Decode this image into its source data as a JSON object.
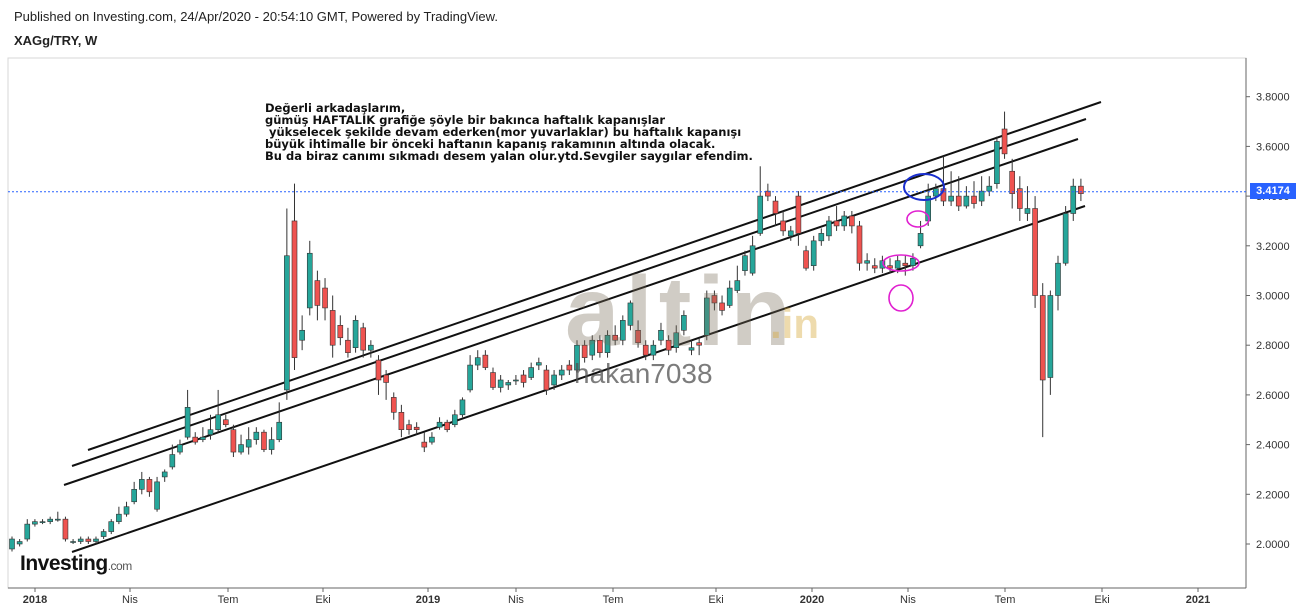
{
  "header": {
    "published": "Published on Investing.com, 24/Apr/2020 - 20:54:10 GMT, Powered by TradingView.",
    "symbol": "XAGg/TRY, W"
  },
  "annotation": [
    "Değerli arkadaşlarım,",
    "gümüş HAFTALIK grafiğe şöyle bir bakınca haftalık kapanışlar",
    " yükselecek şekilde devam ederken(mor yuvarlaklar) bu haftalık kapanışı",
    "büyük ihtimalle bir önceki haftanın kapanış rakamının altında olacak.",
    "Bu da biraz canımı sıkmadı desem yalan olur.ytd.Sevgiler saygılar efendim."
  ],
  "watermark": {
    "brand": "altin",
    "suffix": ".in",
    "user": "hakan7038"
  },
  "logo": {
    "name": "Investing",
    "suffix": ".com"
  },
  "colors": {
    "up": "#26a69a",
    "down": "#ef5350",
    "price_line": "#2962ff",
    "circle_magenta": "#e020d0",
    "circle_blue": "#1a2fcf"
  },
  "chart_data": {
    "type": "candlestick",
    "title": "XAGg/TRY, W",
    "ylim": [
      1.8,
      3.9
    ],
    "y_ticks": [
      "2.0000",
      "2.2000",
      "2.4000",
      "2.6000",
      "2.8000",
      "3.0000",
      "3.2000",
      "3.4000",
      "3.6000",
      "3.8000"
    ],
    "x_ticks": [
      "2018",
      "Nis",
      "Tem",
      "Eki",
      "2019",
      "Nis",
      "Tem",
      "Eki",
      "2020",
      "Nis",
      "Tem",
      "Eki",
      "2021"
    ],
    "last_price": "3.4174",
    "grid": false,
    "candles": [
      [
        1.98,
        2.02,
        1.97,
        2.03
      ],
      [
        2.0,
        2.01,
        1.99,
        2.02
      ],
      [
        2.02,
        2.08,
        2.01,
        2.1
      ],
      [
        2.08,
        2.09,
        2.07,
        2.1
      ],
      [
        2.09,
        2.09,
        2.08,
        2.1
      ],
      [
        2.09,
        2.1,
        2.08,
        2.11
      ],
      [
        2.1,
        2.1,
        2.09,
        2.13
      ],
      [
        2.1,
        2.02,
        2.01,
        2.11
      ],
      [
        2.01,
        2.01,
        2.0,
        2.02
      ],
      [
        2.01,
        2.02,
        2.0,
        2.03
      ],
      [
        2.02,
        2.01,
        2.0,
        2.03
      ],
      [
        2.01,
        2.02,
        2.0,
        2.03
      ],
      [
        2.03,
        2.05,
        2.02,
        2.06
      ],
      [
        2.05,
        2.09,
        2.04,
        2.1
      ],
      [
        2.09,
        2.12,
        2.08,
        2.15
      ],
      [
        2.12,
        2.15,
        2.11,
        2.17
      ],
      [
        2.17,
        2.22,
        2.16,
        2.25
      ],
      [
        2.22,
        2.26,
        2.2,
        2.29
      ],
      [
        2.26,
        2.21,
        2.19,
        2.27
      ],
      [
        2.14,
        2.25,
        2.13,
        2.27
      ],
      [
        2.27,
        2.29,
        2.25,
        2.3
      ],
      [
        2.31,
        2.36,
        2.3,
        2.4
      ],
      [
        2.37,
        2.4,
        2.36,
        2.42
      ],
      [
        2.43,
        2.55,
        2.42,
        2.62
      ],
      [
        2.43,
        2.41,
        2.4,
        2.45
      ],
      [
        2.42,
        2.43,
        2.41,
        2.47
      ],
      [
        2.44,
        2.46,
        2.42,
        2.52
      ],
      [
        2.46,
        2.52,
        2.45,
        2.62
      ],
      [
        2.5,
        2.48,
        2.47,
        2.52
      ],
      [
        2.46,
        2.37,
        2.35,
        2.48
      ],
      [
        2.37,
        2.4,
        2.36,
        2.44
      ],
      [
        2.39,
        2.42,
        2.36,
        2.47
      ],
      [
        2.42,
        2.45,
        2.4,
        2.47
      ],
      [
        2.45,
        2.38,
        2.37,
        2.46
      ],
      [
        2.38,
        2.42,
        2.36,
        2.47
      ],
      [
        2.42,
        2.49,
        2.41,
        2.57
      ],
      [
        2.62,
        3.16,
        2.58,
        3.35
      ],
      [
        3.3,
        2.75,
        2.7,
        3.45
      ],
      [
        2.82,
        2.86,
        2.78,
        2.92
      ],
      [
        2.95,
        3.17,
        2.92,
        3.22
      ],
      [
        3.06,
        2.96,
        2.9,
        3.1
      ],
      [
        3.03,
        2.95,
        2.9,
        3.07
      ],
      [
        2.94,
        2.8,
        2.75,
        3.0
      ],
      [
        2.88,
        2.83,
        2.8,
        2.92
      ],
      [
        2.82,
        2.77,
        2.75,
        2.87
      ],
      [
        2.79,
        2.9,
        2.77,
        2.92
      ],
      [
        2.87,
        2.78,
        2.75,
        2.89
      ],
      [
        2.78,
        2.8,
        2.75,
        2.82
      ],
      [
        2.74,
        2.66,
        2.6,
        2.76
      ],
      [
        2.68,
        2.65,
        2.58,
        2.7
      ],
      [
        2.59,
        2.53,
        2.5,
        2.61
      ],
      [
        2.53,
        2.46,
        2.43,
        2.56
      ],
      [
        2.48,
        2.46,
        2.44,
        2.5
      ],
      [
        2.47,
        2.46,
        2.44,
        2.49
      ],
      [
        2.41,
        2.39,
        2.37,
        2.45
      ],
      [
        2.41,
        2.43,
        2.4,
        2.45
      ],
      [
        2.47,
        2.49,
        2.46,
        2.51
      ],
      [
        2.49,
        2.46,
        2.45,
        2.5
      ],
      [
        2.48,
        2.52,
        2.47,
        2.54
      ],
      [
        2.52,
        2.58,
        2.51,
        2.59
      ],
      [
        2.62,
        2.72,
        2.61,
        2.76
      ],
      [
        2.72,
        2.75,
        2.7,
        2.78
      ],
      [
        2.76,
        2.71,
        2.7,
        2.78
      ],
      [
        2.69,
        2.63,
        2.62,
        2.71
      ],
      [
        2.63,
        2.66,
        2.61,
        2.68
      ],
      [
        2.64,
        2.65,
        2.62,
        2.66
      ],
      [
        2.66,
        2.66,
        2.64,
        2.68
      ],
      [
        2.68,
        2.65,
        2.63,
        2.7
      ],
      [
        2.67,
        2.71,
        2.66,
        2.73
      ],
      [
        2.72,
        2.73,
        2.7,
        2.75
      ],
      [
        2.7,
        2.62,
        2.6,
        2.72
      ],
      [
        2.64,
        2.68,
        2.62,
        2.7
      ],
      [
        2.68,
        2.7,
        2.66,
        2.72
      ],
      [
        2.72,
        2.7,
        2.68,
        2.74
      ],
      [
        2.7,
        2.8,
        2.69,
        2.82
      ],
      [
        2.8,
        2.75,
        2.73,
        2.82
      ],
      [
        2.76,
        2.82,
        2.74,
        2.84
      ],
      [
        2.82,
        2.77,
        2.75,
        2.84
      ],
      [
        2.77,
        2.84,
        2.75,
        2.86
      ],
      [
        2.84,
        2.82,
        2.8,
        2.88
      ],
      [
        2.82,
        2.9,
        2.8,
        2.92
      ],
      [
        2.88,
        2.97,
        2.86,
        2.98
      ],
      [
        2.86,
        2.81,
        2.79,
        2.9
      ],
      [
        2.8,
        2.76,
        2.74,
        2.82
      ],
      [
        2.76,
        2.8,
        2.74,
        2.82
      ],
      [
        2.82,
        2.86,
        2.8,
        2.89
      ],
      [
        2.82,
        2.78,
        2.76,
        2.84
      ],
      [
        2.79,
        2.85,
        2.77,
        2.88
      ],
      [
        2.86,
        2.92,
        2.84,
        2.94
      ],
      [
        2.78,
        2.79,
        2.76,
        2.82
      ],
      [
        2.81,
        2.8,
        2.76,
        2.83
      ],
      [
        2.84,
        2.99,
        2.82,
        3.02
      ],
      [
        3.0,
        2.97,
        2.94,
        3.02
      ],
      [
        2.97,
        2.94,
        2.92,
        3.0
      ],
      [
        2.96,
        3.03,
        2.95,
        3.06
      ],
      [
        3.02,
        3.06,
        3.01,
        3.12
      ],
      [
        3.1,
        3.16,
        3.08,
        3.18
      ],
      [
        3.09,
        3.2,
        3.08,
        3.24
      ],
      [
        3.25,
        3.4,
        3.24,
        3.52
      ],
      [
        3.42,
        3.4,
        3.38,
        3.45
      ],
      [
        3.38,
        3.33,
        3.28,
        3.4
      ],
      [
        3.3,
        3.26,
        3.24,
        3.34
      ],
      [
        3.24,
        3.26,
        3.22,
        3.28
      ],
      [
        3.4,
        3.25,
        3.2,
        3.42
      ],
      [
        3.18,
        3.11,
        3.1,
        3.2
      ],
      [
        3.12,
        3.22,
        3.1,
        3.24
      ],
      [
        3.22,
        3.25,
        3.2,
        3.27
      ],
      [
        3.24,
        3.3,
        3.22,
        3.32
      ],
      [
        3.3,
        3.28,
        3.26,
        3.36
      ],
      [
        3.28,
        3.32,
        3.26,
        3.34
      ],
      [
        3.32,
        3.28,
        3.25,
        3.34
      ],
      [
        3.28,
        3.13,
        3.1,
        3.3
      ],
      [
        3.13,
        3.14,
        3.1,
        3.17
      ],
      [
        3.12,
        3.11,
        3.09,
        3.15
      ],
      [
        3.11,
        3.14,
        3.09,
        3.16
      ],
      [
        3.12,
        3.11,
        3.09,
        3.15
      ],
      [
        3.11,
        3.14,
        3.09,
        3.16
      ],
      [
        3.13,
        3.12,
        3.08,
        3.16
      ],
      [
        3.12,
        3.15,
        3.1,
        3.17
      ],
      [
        3.2,
        3.25,
        3.19,
        3.3
      ],
      [
        3.3,
        3.4,
        3.28,
        3.45
      ],
      [
        3.4,
        3.43,
        3.38,
        3.45
      ],
      [
        3.43,
        3.38,
        3.36,
        3.56
      ],
      [
        3.38,
        3.4,
        3.36,
        3.5
      ],
      [
        3.4,
        3.36,
        3.34,
        3.48
      ],
      [
        3.36,
        3.4,
        3.35,
        3.44
      ],
      [
        3.4,
        3.37,
        3.35,
        3.46
      ],
      [
        3.38,
        3.42,
        3.36,
        3.48
      ],
      [
        3.42,
        3.44,
        3.4,
        3.48
      ],
      [
        3.45,
        3.62,
        3.43,
        3.64
      ],
      [
        3.67,
        3.57,
        3.55,
        3.74
      ],
      [
        3.5,
        3.41,
        3.35,
        3.55
      ],
      [
        3.43,
        3.35,
        3.3,
        3.48
      ],
      [
        3.33,
        3.35,
        3.3,
        3.44
      ],
      [
        3.35,
        3.0,
        2.95,
        3.4
      ],
      [
        3.0,
        2.66,
        2.43,
        3.05
      ],
      [
        2.67,
        3.0,
        2.6,
        3.02
      ],
      [
        3.0,
        3.13,
        2.94,
        3.16
      ],
      [
        3.13,
        3.33,
        3.12,
        3.36
      ],
      [
        3.33,
        3.44,
        3.3,
        3.47
      ],
      [
        3.44,
        3.41,
        3.38,
        3.47
      ]
    ]
  }
}
